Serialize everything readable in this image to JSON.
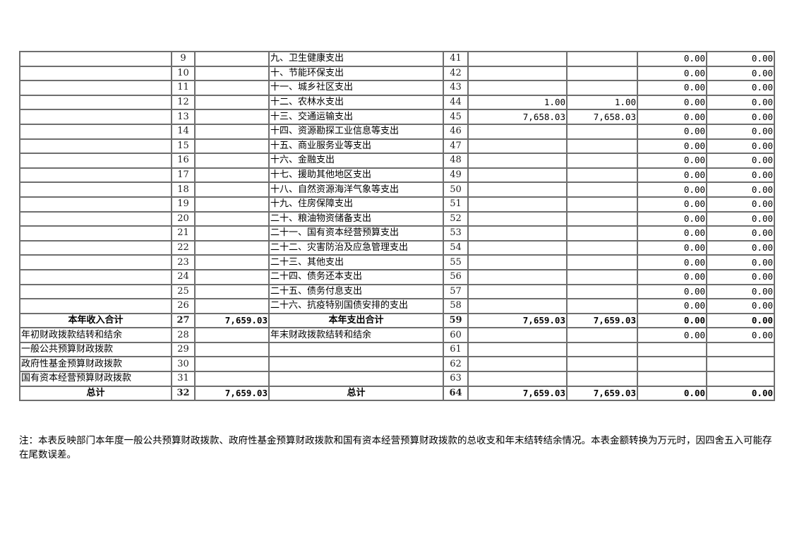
{
  "rows": [
    {
      "cells": [
        "",
        "9",
        "",
        "九、卫生健康支出",
        "41",
        "",
        "",
        "0.00",
        "0.00"
      ]
    },
    {
      "cells": [
        "",
        "10",
        "",
        "十、节能环保支出",
        "42",
        "",
        "",
        "0.00",
        "0.00"
      ]
    },
    {
      "cells": [
        "",
        "11",
        "",
        "十一、城乡社区支出",
        "43",
        "",
        "",
        "0.00",
        "0.00"
      ]
    },
    {
      "cells": [
        "",
        "12",
        "",
        "十二、农林水支出",
        "44",
        "1.00",
        "1.00",
        "0.00",
        "0.00"
      ]
    },
    {
      "cells": [
        "",
        "13",
        "",
        "十三、交通运输支出",
        "45",
        "7,658.03",
        "7,658.03",
        "0.00",
        "0.00"
      ]
    },
    {
      "cells": [
        "",
        "14",
        "",
        "十四、资源勘探工业信息等支出",
        "46",
        "",
        "",
        "0.00",
        "0.00"
      ]
    },
    {
      "cells": [
        "",
        "15",
        "",
        "十五、商业服务业等支出",
        "47",
        "",
        "",
        "0.00",
        "0.00"
      ]
    },
    {
      "cells": [
        "",
        "16",
        "",
        "十六、金融支出",
        "48",
        "",
        "",
        "0.00",
        "0.00"
      ]
    },
    {
      "cells": [
        "",
        "17",
        "",
        "十七、援助其他地区支出",
        "49",
        "",
        "",
        "0.00",
        "0.00"
      ]
    },
    {
      "cells": [
        "",
        "18",
        "",
        "十八、自然资源海洋气象等支出",
        "50",
        "",
        "",
        "0.00",
        "0.00"
      ]
    },
    {
      "cells": [
        "",
        "19",
        "",
        "十九、住房保障支出",
        "51",
        "",
        "",
        "0.00",
        "0.00"
      ]
    },
    {
      "cells": [
        "",
        "20",
        "",
        "二十、粮油物资储备支出",
        "52",
        "",
        "",
        "0.00",
        "0.00"
      ]
    },
    {
      "cells": [
        "",
        "21",
        "",
        "二十一、国有资本经营预算支出",
        "53",
        "",
        "",
        "0.00",
        "0.00"
      ]
    },
    {
      "cells": [
        "",
        "22",
        "",
        "二十二、灾害防治及应急管理支出",
        "54",
        "",
        "",
        "0.00",
        "0.00"
      ]
    },
    {
      "cells": [
        "",
        "23",
        "",
        "二十三、其他支出",
        "55",
        "",
        "",
        "0.00",
        "0.00"
      ]
    },
    {
      "cells": [
        "",
        "24",
        "",
        "二十四、债务还本支出",
        "56",
        "",
        "",
        "0.00",
        "0.00"
      ]
    },
    {
      "cells": [
        "",
        "25",
        "",
        "二十五、债务付息支出",
        "57",
        "",
        "",
        "0.00",
        "0.00"
      ]
    },
    {
      "cells": [
        "",
        "26",
        "",
        "二十六、抗疫特别国债安排的支出",
        "58",
        "",
        "",
        "0.00",
        "0.00"
      ]
    },
    {
      "bold": true,
      "cells": [
        "本年收入合计",
        "27",
        "7,659.03",
        "本年支出合计",
        "59",
        "7,659.03",
        "7,659.03",
        "0.00",
        "0.00"
      ]
    },
    {
      "cells": [
        "年初财政拨款结转和结余",
        "28",
        "",
        "年末财政拨款结转和结余",
        "60",
        "",
        "",
        "0.00",
        "0.00"
      ]
    },
    {
      "cells": [
        "一般公共预算财政拨款",
        "29",
        "",
        "",
        "61",
        "",
        "",
        "",
        ""
      ]
    },
    {
      "cells": [
        "政府性基金预算财政拨款",
        "30",
        "",
        "",
        "62",
        "",
        "",
        "",
        ""
      ]
    },
    {
      "cells": [
        "国有资本经营预算财政拨款",
        "31",
        "",
        "",
        "63",
        "",
        "",
        "",
        ""
      ]
    },
    {
      "bold": true,
      "cells": [
        "总计",
        "32",
        "7,659.03",
        "总计",
        "64",
        "7,659.03",
        "7,659.03",
        "0.00",
        "0.00"
      ]
    }
  ],
  "note": "注：本表反映部门本年度一般公共预算财政拨款、政府性基金预算财政拨款和国有资本经营预算财政拨款的总收支和年末结转结余情况。本表金额转换为万元时，因四舍五入可能存在尾数误差。"
}
